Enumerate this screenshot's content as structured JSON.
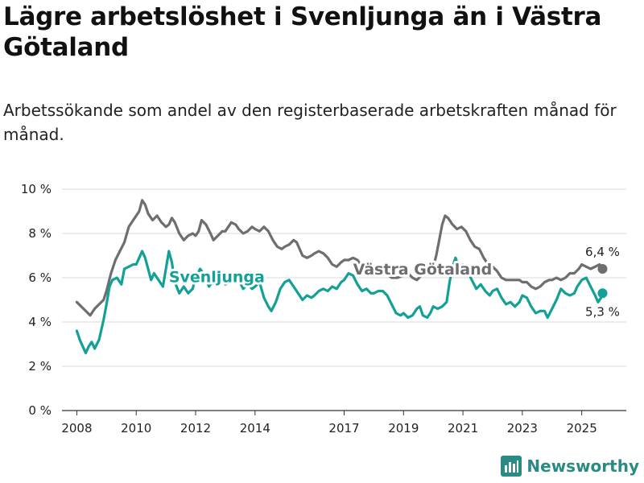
{
  "header": {
    "title": "Lägre arbetslöshet i Svenljunga än i Västra Götaland",
    "subtitle": "Arbetssökande som andel av den registerbaserade arbetskraften månad för månad."
  },
  "brand": {
    "name": "Newsworthy",
    "icon": "newsworthy-logo-icon",
    "color": "#2a8a84"
  },
  "chart_data": {
    "type": "line",
    "title": "Lägre arbetslöshet i Svenljunga än i Västra Götaland",
    "xlabel": "",
    "ylabel": "",
    "ylim": [
      0,
      10
    ],
    "xlim": [
      2007.5,
      2026.5
    ],
    "y_ticks": [
      0,
      2,
      4,
      6,
      8,
      10
    ],
    "y_tick_labels": [
      "0 %",
      "2 %",
      "4 %",
      "6 %",
      "8 %",
      "10 %"
    ],
    "x_ticks": [
      2008,
      2010,
      2012,
      2014,
      2017,
      2019,
      2021,
      2023,
      2025
    ],
    "x_tick_labels": [
      "2008",
      "2010",
      "2012",
      "2014",
      "2017",
      "2019",
      "2021",
      "2023",
      "2025"
    ],
    "grid": true,
    "series": [
      {
        "name": "Västra Götaland",
        "color": "#6e6e70",
        "end_label": "6,4 %",
        "label": "Västra Götaland",
        "points": [
          [
            2008.0,
            4.9
          ],
          [
            2008.15,
            4.7
          ],
          [
            2008.3,
            4.5
          ],
          [
            2008.45,
            4.3
          ],
          [
            2008.6,
            4.6
          ],
          [
            2008.75,
            4.8
          ],
          [
            2008.9,
            5.0
          ],
          [
            2009.0,
            5.4
          ],
          [
            2009.15,
            6.2
          ],
          [
            2009.3,
            6.8
          ],
          [
            2009.45,
            7.2
          ],
          [
            2009.6,
            7.6
          ],
          [
            2009.75,
            8.3
          ],
          [
            2009.9,
            8.6
          ],
          [
            2010.0,
            8.8
          ],
          [
            2010.1,
            9.0
          ],
          [
            2010.2,
            9.5
          ],
          [
            2010.3,
            9.3
          ],
          [
            2010.4,
            8.9
          ],
          [
            2010.55,
            8.6
          ],
          [
            2010.7,
            8.8
          ],
          [
            2010.85,
            8.5
          ],
          [
            2011.0,
            8.3
          ],
          [
            2011.1,
            8.4
          ],
          [
            2011.2,
            8.7
          ],
          [
            2011.3,
            8.5
          ],
          [
            2011.45,
            8.0
          ],
          [
            2011.6,
            7.7
          ],
          [
            2011.75,
            7.9
          ],
          [
            2011.9,
            8.0
          ],
          [
            2012.0,
            7.9
          ],
          [
            2012.1,
            8.1
          ],
          [
            2012.2,
            8.6
          ],
          [
            2012.35,
            8.4
          ],
          [
            2012.5,
            8.0
          ],
          [
            2012.6,
            7.7
          ],
          [
            2012.75,
            7.9
          ],
          [
            2012.9,
            8.1
          ],
          [
            2013.0,
            8.1
          ],
          [
            2013.1,
            8.3
          ],
          [
            2013.2,
            8.5
          ],
          [
            2013.35,
            8.4
          ],
          [
            2013.45,
            8.2
          ],
          [
            2013.6,
            8.0
          ],
          [
            2013.75,
            8.1
          ],
          [
            2013.9,
            8.3
          ],
          [
            2014.0,
            8.2
          ],
          [
            2014.15,
            8.1
          ],
          [
            2014.3,
            8.3
          ],
          [
            2014.45,
            8.1
          ],
          [
            2014.6,
            7.7
          ],
          [
            2014.75,
            7.4
          ],
          [
            2014.9,
            7.3
          ],
          [
            2015.0,
            7.4
          ],
          [
            2015.15,
            7.5
          ],
          [
            2015.3,
            7.7
          ],
          [
            2015.4,
            7.6
          ],
          [
            2015.5,
            7.3
          ],
          [
            2015.6,
            7.0
          ],
          [
            2015.75,
            6.9
          ],
          [
            2015.9,
            7.0
          ],
          [
            2016.0,
            7.1
          ],
          [
            2016.15,
            7.2
          ],
          [
            2016.3,
            7.1
          ],
          [
            2016.45,
            6.9
          ],
          [
            2016.6,
            6.6
          ],
          [
            2016.75,
            6.5
          ],
          [
            2016.9,
            6.7
          ],
          [
            2017.0,
            6.8
          ],
          [
            2017.15,
            6.8
          ],
          [
            2017.3,
            6.9
          ],
          [
            2017.45,
            6.8
          ],
          [
            2017.6,
            6.5
          ],
          [
            2017.75,
            6.3
          ],
          [
            2017.9,
            6.4
          ],
          [
            2018.0,
            6.5
          ],
          [
            2018.2,
            6.4
          ],
          [
            2018.4,
            6.2
          ],
          [
            2018.6,
            6.0
          ],
          [
            2018.8,
            6.0
          ],
          [
            2019.0,
            6.1
          ],
          [
            2019.15,
            6.2
          ],
          [
            2019.3,
            6.0
          ],
          [
            2019.45,
            5.9
          ],
          [
            2019.6,
            6.1
          ],
          [
            2019.75,
            6.3
          ],
          [
            2019.9,
            6.4
          ],
          [
            2020.0,
            6.5
          ],
          [
            2020.1,
            7.0
          ],
          [
            2020.2,
            7.7
          ],
          [
            2020.3,
            8.4
          ],
          [
            2020.4,
            8.8
          ],
          [
            2020.5,
            8.7
          ],
          [
            2020.65,
            8.4
          ],
          [
            2020.8,
            8.2
          ],
          [
            2020.95,
            8.3
          ],
          [
            2021.1,
            8.1
          ],
          [
            2021.25,
            7.7
          ],
          [
            2021.4,
            7.4
          ],
          [
            2021.55,
            7.3
          ],
          [
            2021.7,
            6.9
          ],
          [
            2021.85,
            6.6
          ],
          [
            2022.0,
            6.5
          ],
          [
            2022.15,
            6.3
          ],
          [
            2022.3,
            6.0
          ],
          [
            2022.45,
            5.9
          ],
          [
            2022.6,
            5.9
          ],
          [
            2022.75,
            5.9
          ],
          [
            2022.9,
            5.9
          ],
          [
            2023.0,
            5.8
          ],
          [
            2023.15,
            5.8
          ],
          [
            2023.3,
            5.6
          ],
          [
            2023.45,
            5.5
          ],
          [
            2023.6,
            5.6
          ],
          [
            2023.75,
            5.8
          ],
          [
            2023.9,
            5.9
          ],
          [
            2024.0,
            5.9
          ],
          [
            2024.15,
            6.0
          ],
          [
            2024.3,
            5.9
          ],
          [
            2024.45,
            6.0
          ],
          [
            2024.6,
            6.2
          ],
          [
            2024.75,
            6.2
          ],
          [
            2024.9,
            6.4
          ],
          [
            2025.0,
            6.6
          ],
          [
            2025.15,
            6.5
          ],
          [
            2025.3,
            6.4
          ],
          [
            2025.45,
            6.5
          ],
          [
            2025.6,
            6.6
          ],
          [
            2025.7,
            6.4
          ]
        ]
      },
      {
        "name": "Svenljunga",
        "color": "#13a097",
        "end_label": "5,3 %",
        "label": "Svenljunga",
        "points": [
          [
            2008.0,
            3.6
          ],
          [
            2008.1,
            3.2
          ],
          [
            2008.2,
            2.9
          ],
          [
            2008.3,
            2.6
          ],
          [
            2008.4,
            2.9
          ],
          [
            2008.5,
            3.1
          ],
          [
            2008.6,
            2.8
          ],
          [
            2008.75,
            3.2
          ],
          [
            2008.9,
            4.1
          ],
          [
            2009.0,
            4.8
          ],
          [
            2009.1,
            5.6
          ],
          [
            2009.2,
            5.9
          ],
          [
            2009.35,
            6.0
          ],
          [
            2009.5,
            5.7
          ],
          [
            2009.6,
            6.4
          ],
          [
            2009.75,
            6.5
          ],
          [
            2009.9,
            6.6
          ],
          [
            2010.0,
            6.6
          ],
          [
            2010.1,
            6.9
          ],
          [
            2010.2,
            7.2
          ],
          [
            2010.3,
            6.9
          ],
          [
            2010.4,
            6.4
          ],
          [
            2010.5,
            5.9
          ],
          [
            2010.6,
            6.2
          ],
          [
            2010.75,
            5.9
          ],
          [
            2010.9,
            5.6
          ],
          [
            2011.0,
            6.4
          ],
          [
            2011.1,
            7.2
          ],
          [
            2011.2,
            6.7
          ],
          [
            2011.3,
            5.8
          ],
          [
            2011.45,
            5.3
          ],
          [
            2011.6,
            5.6
          ],
          [
            2011.75,
            5.3
          ],
          [
            2011.9,
            5.5
          ],
          [
            2012.0,
            6.0
          ],
          [
            2012.15,
            6.4
          ],
          [
            2012.3,
            6.1
          ],
          [
            2012.45,
            5.6
          ],
          [
            2012.55,
            5.8
          ],
          [
            2012.7,
            5.6
          ],
          [
            2012.85,
            6.0
          ],
          [
            2013.0,
            5.7
          ],
          [
            2013.15,
            5.8
          ],
          [
            2013.3,
            6.0
          ],
          [
            2013.45,
            5.9
          ],
          [
            2013.6,
            5.5
          ],
          [
            2013.75,
            5.7
          ],
          [
            2013.9,
            5.5
          ],
          [
            2014.0,
            5.6
          ],
          [
            2014.15,
            5.8
          ],
          [
            2014.3,
            5.1
          ],
          [
            2014.45,
            4.7
          ],
          [
            2014.55,
            4.5
          ],
          [
            2014.7,
            4.9
          ],
          [
            2014.85,
            5.5
          ],
          [
            2015.0,
            5.8
          ],
          [
            2015.15,
            5.9
          ],
          [
            2015.3,
            5.6
          ],
          [
            2015.45,
            5.3
          ],
          [
            2015.6,
            5.0
          ],
          [
            2015.75,
            5.2
          ],
          [
            2015.9,
            5.1
          ],
          [
            2016.0,
            5.2
          ],
          [
            2016.15,
            5.4
          ],
          [
            2016.3,
            5.5
          ],
          [
            2016.45,
            5.4
          ],
          [
            2016.6,
            5.6
          ],
          [
            2016.75,
            5.5
          ],
          [
            2016.9,
            5.8
          ],
          [
            2017.0,
            5.9
          ],
          [
            2017.15,
            6.2
          ],
          [
            2017.3,
            6.1
          ],
          [
            2017.45,
            5.7
          ],
          [
            2017.6,
            5.4
          ],
          [
            2017.75,
            5.5
          ],
          [
            2017.9,
            5.3
          ],
          [
            2018.0,
            5.3
          ],
          [
            2018.15,
            5.4
          ],
          [
            2018.3,
            5.4
          ],
          [
            2018.45,
            5.2
          ],
          [
            2018.6,
            4.8
          ],
          [
            2018.75,
            4.4
          ],
          [
            2018.9,
            4.3
          ],
          [
            2019.0,
            4.4
          ],
          [
            2019.15,
            4.2
          ],
          [
            2019.3,
            4.3
          ],
          [
            2019.45,
            4.6
          ],
          [
            2019.55,
            4.7
          ],
          [
            2019.65,
            4.3
          ],
          [
            2019.8,
            4.2
          ],
          [
            2019.9,
            4.4
          ],
          [
            2020.0,
            4.7
          ],
          [
            2020.15,
            4.6
          ],
          [
            2020.3,
            4.7
          ],
          [
            2020.45,
            4.9
          ],
          [
            2020.55,
            5.8
          ],
          [
            2020.65,
            6.5
          ],
          [
            2020.75,
            6.9
          ],
          [
            2020.85,
            6.5
          ],
          [
            2021.0,
            6.6
          ],
          [
            2021.15,
            6.3
          ],
          [
            2021.3,
            5.9
          ],
          [
            2021.45,
            5.5
          ],
          [
            2021.6,
            5.7
          ],
          [
            2021.75,
            5.4
          ],
          [
            2021.9,
            5.2
          ],
          [
            2022.0,
            5.4
          ],
          [
            2022.15,
            5.5
          ],
          [
            2022.3,
            5.1
          ],
          [
            2022.45,
            4.8
          ],
          [
            2022.6,
            4.9
          ],
          [
            2022.75,
            4.7
          ],
          [
            2022.9,
            4.9
          ],
          [
            2023.0,
            5.2
          ],
          [
            2023.15,
            5.1
          ],
          [
            2023.3,
            4.7
          ],
          [
            2023.45,
            4.4
          ],
          [
            2023.6,
            4.5
          ],
          [
            2023.75,
            4.5
          ],
          [
            2023.85,
            4.2
          ],
          [
            2024.0,
            4.6
          ],
          [
            2024.15,
            5.0
          ],
          [
            2024.3,
            5.5
          ],
          [
            2024.45,
            5.3
          ],
          [
            2024.6,
            5.2
          ],
          [
            2024.75,
            5.3
          ],
          [
            2024.85,
            5.6
          ],
          [
            2025.0,
            5.9
          ],
          [
            2025.15,
            6.0
          ],
          [
            2025.3,
            5.6
          ],
          [
            2025.45,
            5.2
          ],
          [
            2025.55,
            4.9
          ],
          [
            2025.65,
            5.1
          ],
          [
            2025.7,
            5.3
          ]
        ]
      }
    ],
    "series_label_positions": {
      "Svenljunga": [
        2011.1,
        6.05
      ],
      "Västra Götaland": [
        2017.3,
        6.4
      ]
    }
  }
}
